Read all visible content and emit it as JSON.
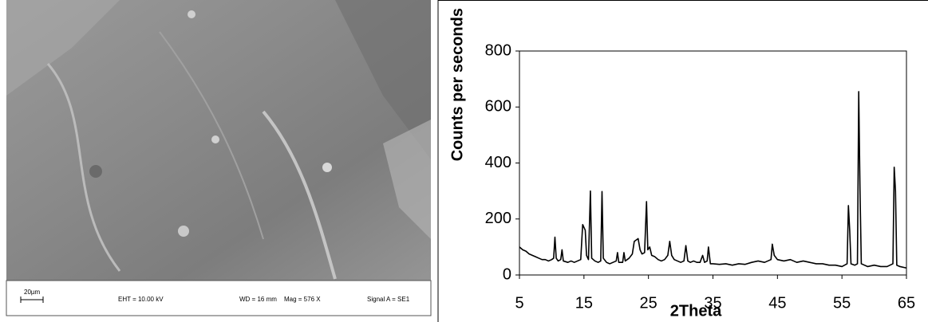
{
  "image_info": {
    "scale": "20µm",
    "eht": "EHT = 10.00 kV",
    "wd": "WD =  16 mm",
    "mag": "Mag =   576 X",
    "signal": "Signal A = SE1"
  },
  "chart_data": {
    "type": "line",
    "xlabel": "2Theta",
    "ylabel": "Counts per seconds",
    "xlim": [
      5,
      65
    ],
    "xticks": [
      5,
      15,
      25,
      35,
      45,
      55,
      65
    ],
    "ylim": [
      0,
      800
    ],
    "yticks": [
      0,
      200,
      400,
      600,
      800
    ],
    "grid": false,
    "color": "#000000",
    "x": [
      5,
      5.5,
      6,
      6.5,
      7,
      7.5,
      8,
      8.5,
      9,
      9.5,
      10,
      10.3,
      10.5,
      10.7,
      11,
      11.4,
      11.6,
      11.8,
      12.5,
      13,
      13.5,
      14,
      14.5,
      14.8,
      15,
      15.2,
      15.4,
      15.7,
      16,
      16.2,
      16.7,
      17.2,
      17.6,
      17.8,
      18,
      18.5,
      19,
      19.5,
      20,
      20.2,
      20.4,
      21,
      21.2,
      21.4,
      22,
      22.5,
      22.8,
      23.1,
      23.4,
      23.7,
      24,
      24.4,
      24.7,
      24.9,
      25.2,
      25.5,
      26,
      26.5,
      27,
      27.5,
      28,
      28.3,
      28.6,
      29,
      29.5,
      30,
      30.5,
      30.8,
      31.1,
      31.5,
      32,
      32.5,
      33,
      33.4,
      33.7,
      34.1,
      34.3,
      34.6,
      35,
      36,
      37,
      38,
      39,
      40,
      41,
      42,
      43,
      44,
      44.2,
      44.5,
      45,
      46,
      47,
      48,
      49,
      50,
      51,
      52,
      53,
      54,
      55,
      55.8,
      56,
      56.2,
      56.4,
      57,
      57.4,
      57.6,
      57.8,
      58,
      59,
      60,
      61,
      62,
      62.9,
      63.1,
      63.3,
      63.5,
      64,
      65
    ],
    "values": [
      100,
      90,
      85,
      75,
      70,
      65,
      60,
      55,
      55,
      50,
      55,
      60,
      135,
      60,
      50,
      55,
      90,
      50,
      45,
      50,
      45,
      50,
      55,
      180,
      170,
      160,
      70,
      55,
      300,
      60,
      50,
      45,
      50,
      298,
      60,
      45,
      40,
      45,
      50,
      80,
      45,
      45,
      80,
      50,
      60,
      75,
      120,
      125,
      130,
      90,
      75,
      80,
      262,
      90,
      100,
      70,
      65,
      55,
      50,
      55,
      70,
      120,
      70,
      55,
      50,
      45,
      50,
      105,
      50,
      45,
      50,
      45,
      45,
      70,
      45,
      50,
      100,
      40,
      40,
      38,
      40,
      35,
      40,
      38,
      45,
      50,
      45,
      55,
      110,
      70,
      55,
      50,
      55,
      45,
      50,
      45,
      40,
      40,
      35,
      35,
      30,
      40,
      248,
      160,
      40,
      35,
      40,
      655,
      300,
      40,
      30,
      35,
      30,
      30,
      40,
      385,
      300,
      35,
      30,
      25
    ]
  }
}
